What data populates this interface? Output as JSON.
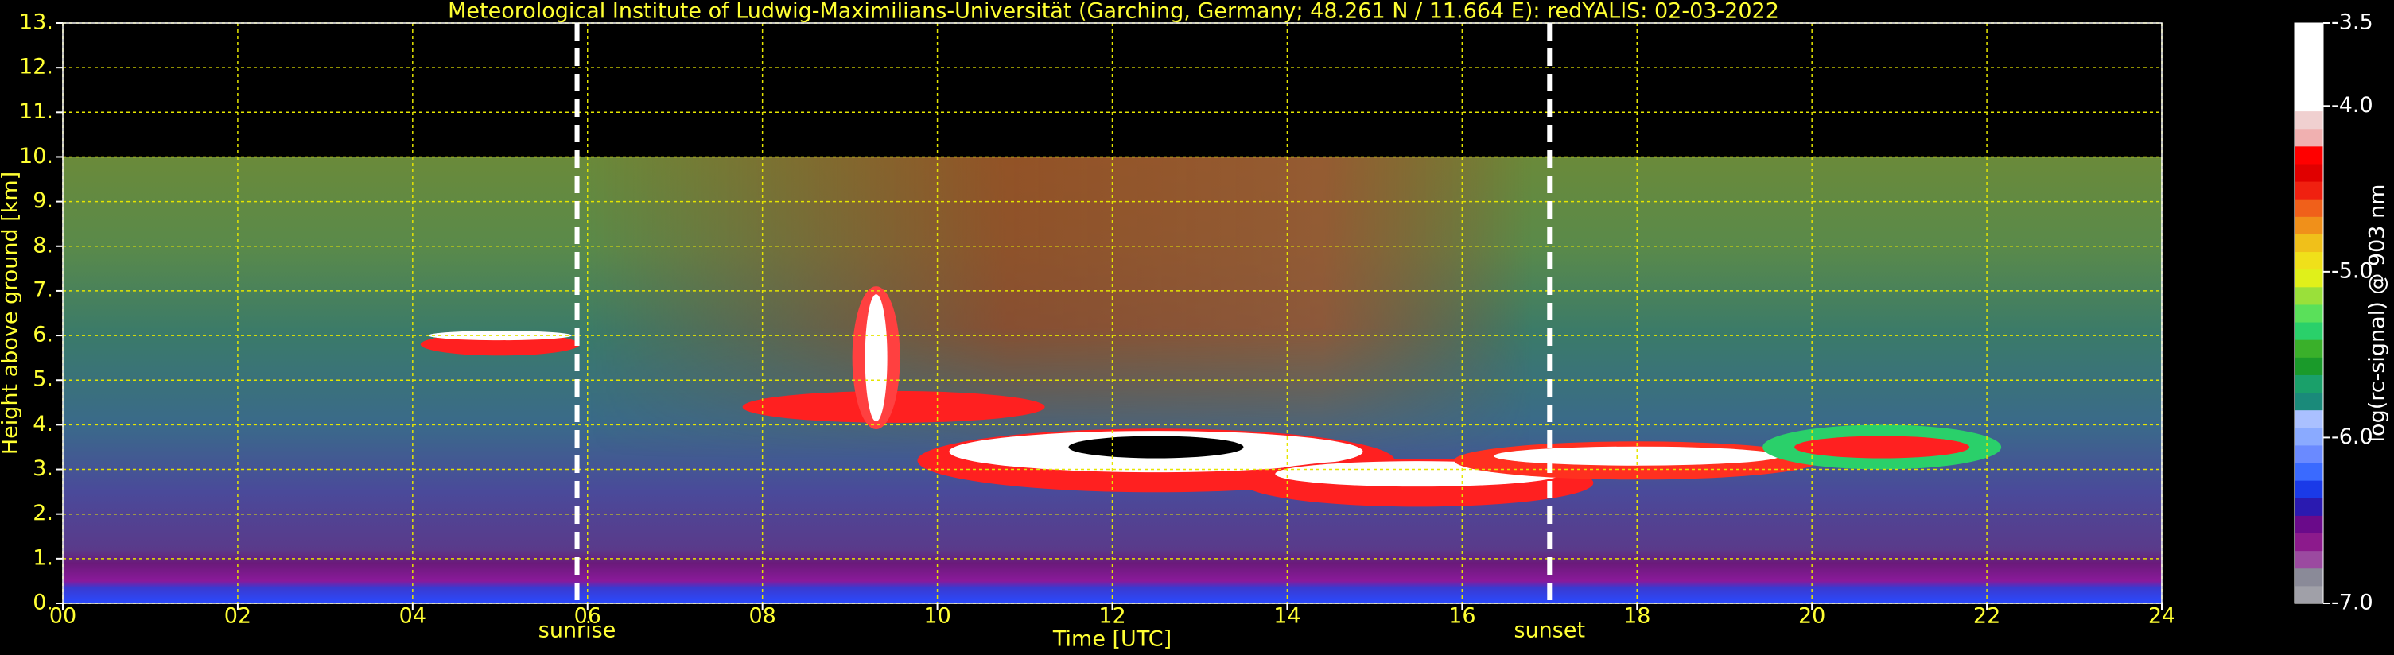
{
  "chart_data": {
    "type": "heatmap",
    "title": "Meteorological Institute of Ludwig-Maximilians-Universität (Garching, Germany; 48.261 N / 11.664 E):    redYALIS: 02-03-2022",
    "xlabel": "Time [UTC]",
    "ylabel": "Height above ground [km]",
    "xlim": [
      0,
      24
    ],
    "xticks": [
      {
        "value": 0,
        "label": "00"
      },
      {
        "value": 2,
        "label": "02"
      },
      {
        "value": 4,
        "label": "04"
      },
      {
        "value": 6,
        "label": "06"
      },
      {
        "value": 8,
        "label": "08"
      },
      10,
      12,
      14,
      16,
      18,
      20,
      22,
      24
    ],
    "ylim": [
      0,
      13
    ],
    "yticks": [
      {
        "value": 0,
        "label": "0."
      },
      {
        "value": 1,
        "label": "1."
      },
      {
        "value": 2,
        "label": "2."
      },
      {
        "value": 3,
        "label": "3."
      },
      {
        "value": 4,
        "label": "4."
      },
      {
        "value": 5,
        "label": "5."
      },
      {
        "value": 6,
        "label": "6."
      },
      {
        "value": 7,
        "label": "7."
      },
      {
        "value": 8,
        "label": "8."
      },
      {
        "value": 9,
        "label": "9."
      },
      {
        "value": 10,
        "label": "10."
      },
      {
        "value": 11,
        "label": "11."
      },
      {
        "value": 12,
        "label": "12."
      },
      {
        "value": 13,
        "label": "13."
      }
    ],
    "grid": true,
    "grid_color": "#e6e600",
    "text_color": "#ffff33",
    "annotations": [
      {
        "x": 5.88,
        "text": "sunrise"
      },
      {
        "x": 17.0,
        "text": "sunset"
      }
    ],
    "colorbar": {
      "label": "log(rc-signal) @ 903 nm",
      "clim": [
        -7,
        -3.5
      ],
      "ticks": [
        {
          "value": -7,
          "label": "-7.0"
        },
        {
          "value": -6,
          "label": "-6.0"
        },
        {
          "value": -5,
          "label": "-5.0"
        },
        {
          "value": -4,
          "label": "-4.0"
        },
        -3.5
      ],
      "colors": [
        "#a0a0a8",
        "#8a8a98",
        "#9b4aa0",
        "#8c1a8c",
        "#6a0a8a",
        "#2a1ab0",
        "#1a3ae8",
        "#3a6aff",
        "#6a8aff",
        "#8aaaff",
        "#aac0ff",
        "#1a8a7a",
        "#1aa06a",
        "#1a9a2a",
        "#3ab02a",
        "#2ad06a",
        "#5ae05a",
        "#9ae03a",
        "#e0f01a",
        "#f0e01a",
        "#f0c01a",
        "#f0901a",
        "#f0601a",
        "#f02010",
        "#e00000",
        "#ff0000",
        "#f0b0b0",
        "#f0d0d0",
        "#ffffff",
        "#ffffff",
        "#ffffff",
        "#ffffff",
        "#ffffff"
      ]
    }
  }
}
